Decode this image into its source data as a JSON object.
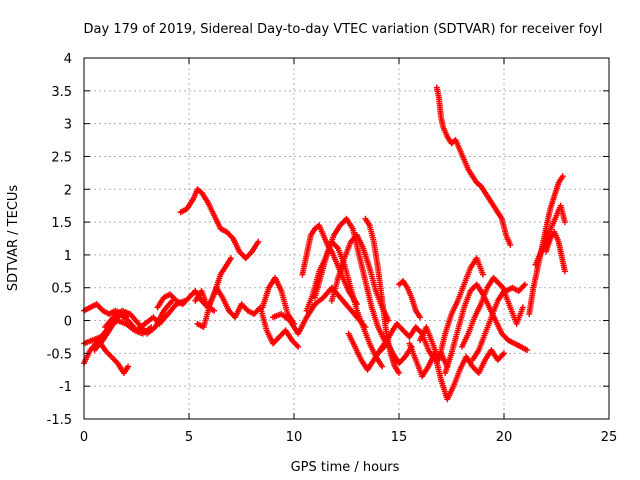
{
  "chart_data": {
    "type": "scatter",
    "title": "Day 179 of 2019, Sidereal Day-to-day VTEC variation (SDTVAR) for receiver foyl",
    "xlabel": "GPS time / hours",
    "ylabel": "SDTVAR / TECUs",
    "xlim": [
      0,
      25
    ],
    "ylim": [
      -1.5,
      4
    ],
    "xticks": [
      "0",
      "5",
      "10",
      "15",
      "20",
      "25"
    ],
    "yticks": [
      "-1.5",
      "-1",
      "-0.5",
      "0",
      "0.5",
      "1",
      "1.5",
      "2",
      "2.5",
      "3",
      "3.5",
      "4"
    ],
    "grid": true,
    "marker": "+",
    "color": "#ff0000",
    "series": [
      {
        "x": [
          0.0,
          0.3,
          0.6,
          0.9,
          1.2,
          1.5,
          1.8,
          2.0,
          2.1
        ],
        "y": [
          0.15,
          0.2,
          0.25,
          0.15,
          0.1,
          0.15,
          0.1,
          0.05,
          0.1
        ]
      },
      {
        "x": [
          0.0,
          0.3,
          0.7,
          1.0,
          1.3,
          1.6,
          1.8,
          1.9,
          2.1
        ],
        "y": [
          -0.65,
          -0.45,
          -0.3,
          -0.45,
          -0.55,
          -0.65,
          -0.75,
          -0.8,
          -0.7
        ]
      },
      {
        "x": [
          0.0,
          0.4,
          0.8,
          1.2,
          1.6,
          2.0,
          2.4,
          2.8,
          3.2
        ],
        "y": [
          -0.35,
          -0.3,
          -0.25,
          -0.1,
          0.0,
          -0.05,
          -0.15,
          -0.2,
          -0.1
        ]
      },
      {
        "x": [
          0.5,
          0.9,
          1.3,
          1.7,
          2.1,
          2.5,
          2.9,
          3.3,
          3.6,
          4.0,
          4.4,
          4.8
        ],
        "y": [
          -0.45,
          -0.3,
          -0.1,
          0.1,
          0.0,
          -0.15,
          -0.05,
          0.05,
          -0.05,
          0.1,
          0.25,
          0.3
        ]
      },
      {
        "x": [
          1.0,
          1.4,
          1.8,
          2.2,
          2.6,
          3.0,
          3.4,
          3.8,
          4.2
        ],
        "y": [
          -0.1,
          0.05,
          0.15,
          0.1,
          -0.05,
          -0.2,
          -0.1,
          0.15,
          0.3
        ]
      },
      {
        "x": [
          3.5,
          3.8,
          4.1,
          4.4,
          4.7,
          5.0,
          5.3,
          5.6,
          5.9,
          6.2
        ],
        "y": [
          0.2,
          0.35,
          0.4,
          0.3,
          0.25,
          0.35,
          0.45,
          0.3,
          0.2,
          0.15
        ]
      },
      {
        "x": [
          4.6,
          4.9,
          5.2,
          5.4,
          5.6,
          5.9,
          6.2,
          6.5,
          6.8,
          7.1,
          7.4,
          7.7,
          8.0,
          8.3
        ],
        "y": [
          1.65,
          1.7,
          1.85,
          2.0,
          1.95,
          1.8,
          1.6,
          1.4,
          1.35,
          1.25,
          1.05,
          0.95,
          1.05,
          1.2
        ]
      },
      {
        "x": [
          5.3,
          5.6,
          5.9,
          6.2,
          6.5,
          6.8,
          7.0
        ],
        "y": [
          0.3,
          0.45,
          0.2,
          0.4,
          0.7,
          0.85,
          0.95
        ]
      },
      {
        "x": [
          5.4,
          5.7,
          6.0,
          6.3,
          6.6,
          6.9,
          7.2,
          7.5,
          7.8,
          8.1,
          8.4,
          8.7,
          9.0,
          9.3,
          9.6,
          9.9,
          10.2
        ],
        "y": [
          -0.05,
          -0.1,
          0.25,
          0.5,
          0.35,
          0.15,
          0.05,
          0.25,
          0.15,
          0.1,
          0.2,
          -0.15,
          -0.35,
          -0.25,
          -0.15,
          -0.3,
          -0.4
        ]
      },
      {
        "x": [
          8.5,
          8.8,
          9.1,
          9.4,
          9.7,
          10.0
        ],
        "y": [
          0.2,
          0.5,
          0.65,
          0.45,
          0.1,
          -0.05
        ]
      },
      {
        "x": [
          9.0,
          9.4,
          9.8,
          10.2,
          10.6,
          11.0,
          11.4,
          11.8,
          12.2,
          12.6,
          13.0,
          13.4
        ],
        "y": [
          0.05,
          0.1,
          0.0,
          -0.2,
          0.05,
          0.25,
          0.35,
          0.5,
          0.35,
          0.2,
          0.05,
          -0.1
        ]
      },
      {
        "x": [
          10.4,
          10.6,
          10.8,
          11.0,
          11.2,
          11.4,
          11.6,
          11.8,
          12.0,
          12.2,
          12.4,
          12.6,
          12.8,
          13.0
        ],
        "y": [
          0.7,
          1.0,
          1.3,
          1.4,
          1.45,
          1.3,
          1.15,
          1.05,
          0.9,
          0.75,
          0.6,
          0.45,
          0.35,
          0.25
        ]
      },
      {
        "x": [
          10.6,
          10.9,
          11.2,
          11.5,
          11.8,
          12.1,
          12.4,
          12.7,
          13.0,
          13.3,
          13.6,
          13.9,
          14.2
        ],
        "y": [
          0.15,
          0.4,
          0.75,
          0.95,
          1.2,
          1.1,
          0.85,
          0.5,
          0.15,
          -0.1,
          -0.35,
          -0.55,
          -0.7
        ]
      },
      {
        "x": [
          11.0,
          11.3,
          11.6,
          11.9,
          12.2,
          12.5,
          12.8,
          13.1,
          13.4,
          13.7,
          14.0,
          14.3,
          14.6
        ],
        "y": [
          0.35,
          0.7,
          1.05,
          1.3,
          1.45,
          1.55,
          1.4,
          1.0,
          0.6,
          0.2,
          -0.1,
          -0.3,
          -0.2
        ]
      },
      {
        "x": [
          11.8,
          12.1,
          12.4,
          12.7,
          13.0,
          13.3,
          13.6,
          13.9,
          14.2,
          14.5
        ],
        "y": [
          0.3,
          0.65,
          0.95,
          1.2,
          1.3,
          1.1,
          0.8,
          0.45,
          0.2,
          0.0
        ]
      },
      {
        "x": [
          13.4,
          13.6,
          13.8,
          14.0,
          14.2,
          14.4,
          14.6,
          14.8,
          15.0
        ],
        "y": [
          1.55,
          1.45,
          1.2,
          0.8,
          0.3,
          -0.2,
          -0.5,
          -0.7,
          -0.8
        ]
      },
      {
        "x": [
          12.6,
          12.9,
          13.2,
          13.5,
          13.8,
          14.1,
          14.4,
          14.7,
          15.0,
          15.3,
          15.6
        ],
        "y": [
          -0.2,
          -0.4,
          -0.6,
          -0.75,
          -0.6,
          -0.45,
          -0.3,
          -0.5,
          -0.65,
          -0.55,
          -0.4
        ]
      },
      {
        "x": [
          14.0,
          14.3,
          14.6,
          14.9,
          15.2,
          15.5,
          15.8,
          16.1,
          16.4,
          16.7,
          17.0,
          17.3
        ],
        "y": [
          -0.5,
          -0.4,
          -0.2,
          -0.05,
          -0.15,
          -0.25,
          -0.1,
          -0.2,
          -0.45,
          -0.6,
          -0.5,
          -0.7
        ]
      },
      {
        "x": [
          15.0,
          15.2,
          15.4,
          15.6,
          15.8,
          16.0
        ],
        "y": [
          0.55,
          0.6,
          0.5,
          0.35,
          0.15,
          0.05
        ]
      },
      {
        "x": [
          16.8,
          16.9,
          17.0,
          17.1,
          17.3,
          17.5,
          17.7,
          17.9,
          18.1,
          18.3,
          18.5,
          18.7,
          18.9,
          19.1,
          19.3,
          19.5,
          19.7,
          19.9,
          20.1,
          20.3
        ],
        "y": [
          3.55,
          3.4,
          3.1,
          2.95,
          2.8,
          2.7,
          2.75,
          2.6,
          2.45,
          2.3,
          2.2,
          2.1,
          2.05,
          1.95,
          1.85,
          1.75,
          1.65,
          1.55,
          1.3,
          1.15
        ]
      },
      {
        "x": [
          15.5,
          15.8,
          16.1,
          16.4,
          16.7,
          17.0,
          17.3,
          17.6,
          17.9,
          18.2,
          18.5,
          18.8,
          19.1,
          19.4,
          19.7,
          20.0
        ],
        "y": [
          -0.35,
          -0.6,
          -0.85,
          -0.7,
          -0.5,
          -0.9,
          -1.2,
          -1.0,
          -0.75,
          -0.55,
          -0.7,
          -0.8,
          -0.6,
          -0.45,
          -0.6,
          -0.5
        ]
      },
      {
        "x": [
          16.0,
          16.3,
          16.6,
          16.9,
          17.2,
          17.5,
          17.8,
          18.1,
          18.4,
          18.7,
          19.0
        ],
        "y": [
          -0.3,
          -0.1,
          -0.35,
          -0.6,
          -0.2,
          0.1,
          0.3,
          0.55,
          0.8,
          0.95,
          0.7
        ]
      },
      {
        "x": [
          17.2,
          17.5,
          17.8,
          18.1,
          18.4,
          18.7,
          19.0,
          19.3,
          19.6,
          19.9,
          20.2,
          20.5,
          20.8,
          21.1
        ],
        "y": [
          -0.8,
          -0.5,
          -0.15,
          0.2,
          0.45,
          0.55,
          0.4,
          0.2,
          0.0,
          -0.2,
          -0.3,
          -0.35,
          -0.4,
          -0.45
        ]
      },
      {
        "x": [
          18.0,
          18.3,
          18.6,
          18.9,
          19.2,
          19.5,
          19.8,
          20.1,
          20.4,
          20.7,
          21.0
        ],
        "y": [
          -0.4,
          -0.2,
          0.05,
          0.25,
          0.5,
          0.65,
          0.55,
          0.45,
          0.5,
          0.45,
          0.55
        ]
      },
      {
        "x": [
          18.5,
          18.8,
          19.1,
          19.4,
          19.7,
          20.0,
          20.3,
          20.6,
          20.9
        ],
        "y": [
          -0.6,
          -0.45,
          -0.2,
          0.05,
          0.3,
          0.45,
          0.2,
          -0.05,
          0.2
        ]
      },
      {
        "x": [
          21.2,
          21.4,
          21.6,
          21.8,
          22.0,
          22.2,
          22.4,
          22.6,
          22.8
        ],
        "y": [
          0.1,
          0.5,
          0.8,
          1.1,
          1.4,
          1.7,
          1.9,
          2.1,
          2.2
        ]
      },
      {
        "x": [
          21.5,
          21.7,
          21.9,
          22.1,
          22.3,
          22.5,
          22.7,
          22.9
        ],
        "y": [
          0.85,
          1.0,
          1.15,
          1.3,
          1.45,
          1.6,
          1.75,
          1.5
        ]
      },
      {
        "x": [
          22.0,
          22.2,
          22.4,
          22.6,
          22.8,
          22.9
        ],
        "y": [
          1.05,
          1.25,
          1.35,
          1.2,
          0.9,
          0.75
        ]
      }
    ]
  }
}
